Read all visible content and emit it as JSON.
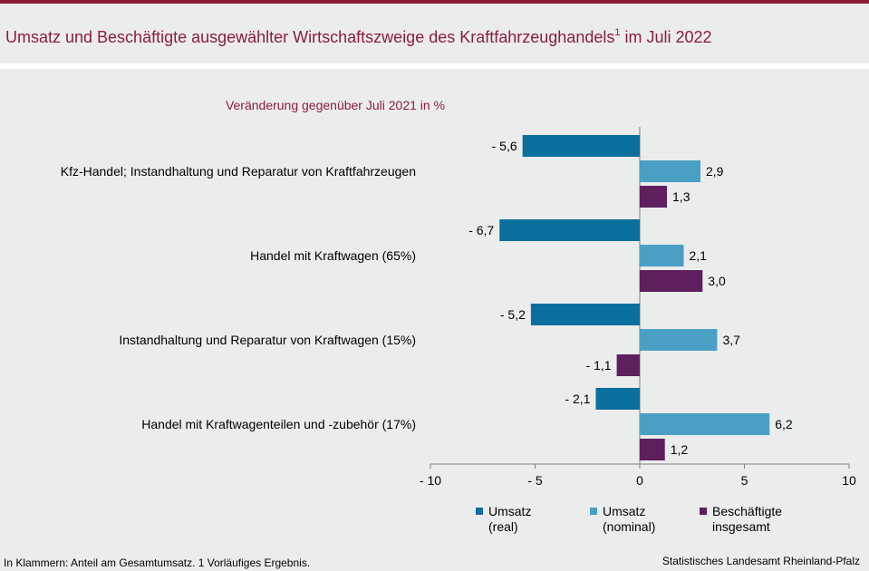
{
  "header": {
    "title": "Umsatz und Beschäftigte ausgewählter Wirtschaftszweige des Kraftfahrzeughandels",
    "title_sup": "1",
    "title_suffix": " im Juli 2022"
  },
  "chart_data": {
    "type": "bar",
    "orientation": "horizontal",
    "subtitle": "Veränderung gegenüber Juli 2021 in %",
    "categories": [
      "Kfz-Handel; Instandhaltung und Reparatur von Kraftfahrzeugen",
      "Handel mit Kraftwagen (65%)",
      "Instandhaltung und Reparatur von Kraftwagen (15%)",
      "Handel mit Kraftwagenteilen und -zubehör (17%)"
    ],
    "series": [
      {
        "name": "Umsatz (real)",
        "legend_lines": [
          "Umsatz",
          "(real)"
        ],
        "color": "#0a6f9c",
        "values": [
          -5.6,
          -6.7,
          -5.2,
          -2.1
        ],
        "labels": [
          "- 5,6",
          "- 6,7",
          "- 5,2",
          "- 2,1"
        ]
      },
      {
        "name": "Umsatz (nominal)",
        "legend_lines": [
          "Umsatz",
          "(nominal)"
        ],
        "color": "#4aa0c4",
        "values": [
          2.9,
          2.1,
          3.7,
          6.2
        ],
        "labels": [
          "2,9",
          "2,1",
          "3,7",
          "6,2"
        ]
      },
      {
        "name": "Beschäftigte insgesamt",
        "legend_lines": [
          "Beschäftigte",
          "insgesamt"
        ],
        "color": "#5e1f5e",
        "values": [
          1.3,
          3.0,
          -1.1,
          1.2
        ],
        "labels": [
          "1,3",
          "3,0",
          "- 1,1",
          "1,2"
        ]
      }
    ],
    "xlim": [
      -10,
      10
    ],
    "xticks": [
      -10,
      -5,
      0,
      5,
      10
    ],
    "xtick_labels": [
      "- 10",
      "- 5",
      "0",
      "5",
      "10"
    ],
    "legend_position": "bottom"
  },
  "footer": {
    "note": "In Klammern: Anteil am Gesamtumsatz. 1 Vorläufiges  Ergebnis.",
    "source": "Statistisches Landesamt Rheinland-Pfalz"
  }
}
